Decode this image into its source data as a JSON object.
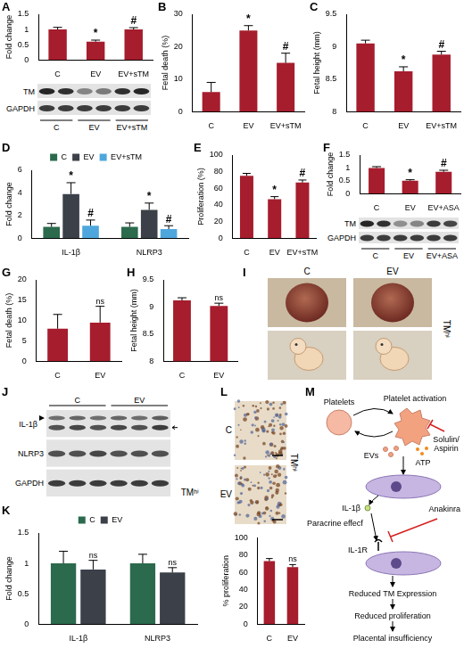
{
  "chart_data": [
    {
      "panel": "A",
      "type": "bar",
      "ylabel": "Fold change",
      "categories": [
        "C",
        "EV",
        "EV+sTM"
      ],
      "series": [
        {
          "color": "#a61d2d",
          "values": [
            1.0,
            0.6,
            1.0
          ],
          "errors": [
            0.07,
            0.05,
            0.06
          ],
          "annotations": [
            null,
            "*",
            "#"
          ]
        }
      ],
      "ylim": [
        0,
        1.5
      ],
      "yticks": [
        0,
        0.5,
        1,
        1.5
      ],
      "grid": false
    },
    {
      "panel": "B",
      "type": "bar",
      "ylabel": "Fetal death (%)",
      "categories": [
        "C",
        "EV",
        "EV+sTM"
      ],
      "series": [
        {
          "color": "#a61d2d",
          "values": [
            6,
            25,
            15
          ],
          "errors": [
            3,
            1.5,
            3
          ],
          "annotations": [
            null,
            "*",
            "#"
          ]
        }
      ],
      "ylim": [
        0,
        30
      ],
      "yticks": [
        0,
        10,
        20,
        30
      ],
      "grid": false
    },
    {
      "panel": "C",
      "type": "bar",
      "ylabel": "Fetal height (mm)",
      "categories": [
        "C",
        "EV",
        "EV+sTM"
      ],
      "series": [
        {
          "color": "#a61d2d",
          "values": [
            9.05,
            8.62,
            8.88
          ],
          "errors": [
            0.05,
            0.07,
            0.05
          ],
          "annotations": [
            null,
            "*",
            "#"
          ]
        }
      ],
      "ylim": [
        8,
        9.5
      ],
      "yticks": [
        8,
        8.5,
        9,
        9.5
      ],
      "grid": false
    },
    {
      "panel": "D",
      "type": "bar",
      "ylabel": "Fold change",
      "categories": [
        "IL-1β",
        "NLRP3"
      ],
      "legend": "top",
      "series": [
        {
          "name": "C",
          "color": "#2b6a4d",
          "values": [
            1.0,
            1.0
          ],
          "errors": [
            0.3,
            0.35
          ],
          "annotations": [
            null,
            null
          ]
        },
        {
          "name": "EV",
          "color": "#3b4049",
          "values": [
            3.9,
            2.5
          ],
          "errors": [
            1.0,
            0.6
          ],
          "annotations": [
            "*",
            "*"
          ]
        },
        {
          "name": "EV+sTM",
          "color": "#4ea7dc",
          "values": [
            1.1,
            0.8
          ],
          "errors": [
            0.5,
            0.3
          ],
          "annotations": [
            "#",
            "#"
          ]
        }
      ],
      "ylim": [
        0,
        6
      ],
      "yticks": [
        0,
        2,
        4,
        6
      ],
      "grid": false
    },
    {
      "panel": "E",
      "type": "bar",
      "ylabel": "Proliferation (%)",
      "categories": [
        "C",
        "EV",
        "EV+sTM"
      ],
      "series": [
        {
          "color": "#a61d2d",
          "values": [
            75,
            47,
            67
          ],
          "errors": [
            3,
            3,
            3
          ],
          "annotations": [
            null,
            "*",
            "#"
          ]
        }
      ],
      "ylim": [
        0,
        100
      ],
      "yticks": [
        0,
        20,
        40,
        60,
        80,
        100
      ],
      "grid": false
    },
    {
      "panel": "F",
      "type": "bar",
      "ylabel": "Fold change",
      "categories": [
        "C",
        "EV",
        "EV+ASA"
      ],
      "series": [
        {
          "color": "#a61d2d",
          "values": [
            1.0,
            0.5,
            0.85
          ],
          "errors": [
            0.05,
            0.04,
            0.06
          ],
          "annotations": [
            null,
            "*",
            "#"
          ]
        }
      ],
      "ylim": [
        0,
        1.5
      ],
      "yticks": [
        0,
        0.5,
        1,
        1.5
      ],
      "grid": false
    },
    {
      "panel": "G",
      "type": "bar",
      "ylabel": "Fetal death (%)",
      "categories": [
        "C",
        "EV"
      ],
      "series": [
        {
          "color": "#a61d2d",
          "values": [
            8,
            9.5
          ],
          "errors": [
            3.5,
            4
          ],
          "annotations": [
            null,
            "ns"
          ]
        }
      ],
      "ylim": [
        0,
        20
      ],
      "yticks": [
        0,
        5,
        10,
        15,
        20
      ],
      "grid": false
    },
    {
      "panel": "H",
      "type": "bar",
      "ylabel": "Fetal height (mm)",
      "categories": [
        "C",
        "EV"
      ],
      "series": [
        {
          "color": "#a61d2d",
          "values": [
            9.12,
            9.02
          ],
          "errors": [
            0.05,
            0.05
          ],
          "annotations": [
            null,
            "ns"
          ]
        }
      ],
      "ylim": [
        8,
        9.5
      ],
      "yticks": [
        8,
        8.5,
        9,
        9.5
      ],
      "grid": false
    },
    {
      "panel": "K",
      "type": "bar",
      "ylabel": "Fold change",
      "categories": [
        "IL-1β",
        "NLRP3"
      ],
      "legend": "top",
      "series": [
        {
          "name": "C",
          "color": "#2b6a4d",
          "values": [
            1.0,
            1.0
          ],
          "errors": [
            0.2,
            0.15
          ],
          "annotations": [
            null,
            null
          ]
        },
        {
          "name": "EV",
          "color": "#3b4049",
          "values": [
            0.9,
            0.85
          ],
          "errors": [
            0.15,
            0.08
          ],
          "annotations": [
            "ns",
            "ns"
          ]
        }
      ],
      "ylim": [
        0,
        1.5
      ],
      "yticks": [
        0,
        0.5,
        1,
        1.5
      ],
      "grid": false
    },
    {
      "type": "bar",
      "ylabel": "% proliferation",
      "categories": [
        "C",
        "EV"
      ],
      "series": [
        {
          "color": "#a61d2d",
          "values": [
            73,
            66
          ],
          "errors": [
            3,
            3
          ],
          "annotations": [
            null,
            "ns"
          ]
        }
      ],
      "ylim": [
        0,
        100
      ],
      "yticks": [
        0,
        20,
        40,
        60,
        80,
        100
      ],
      "grid": false
    }
  ],
  "blots": [
    {
      "rows": [
        "TM",
        "GAPDH"
      ],
      "groups": [
        "C",
        "EV",
        "EV+sTM"
      ]
    },
    {
      "rows": [
        "TM",
        "GAPDH"
      ],
      "groups": [
        "C",
        "EV",
        "EV+ASA"
      ]
    },
    {
      "panel": "J",
      "rows": [
        "IL-1β",
        "NLRP3",
        "GAPDH"
      ],
      "groups": [
        "C",
        "EV"
      ],
      "side_label": "TMʰⁱ"
    }
  ],
  "images": [
    {
      "panel": "I",
      "labels": [
        "C",
        "EV"
      ],
      "side_label": "TMʰⁱ"
    },
    {
      "panel": "L",
      "labels": [
        "C",
        "EV"
      ],
      "side_label": "TMʰⁱ"
    }
  ],
  "diagram": {
    "panel": "M",
    "texts": [
      "Platelets",
      "Platelet activation",
      "Solulin/Aspirin",
      "EVs",
      "ATP",
      "IL-1β",
      "Anakinra",
      "Paracrine effecf",
      "IL-1R",
      "Reduced TM Expression",
      "Reduced proliferation",
      "Placental insufficiency"
    ]
  }
}
